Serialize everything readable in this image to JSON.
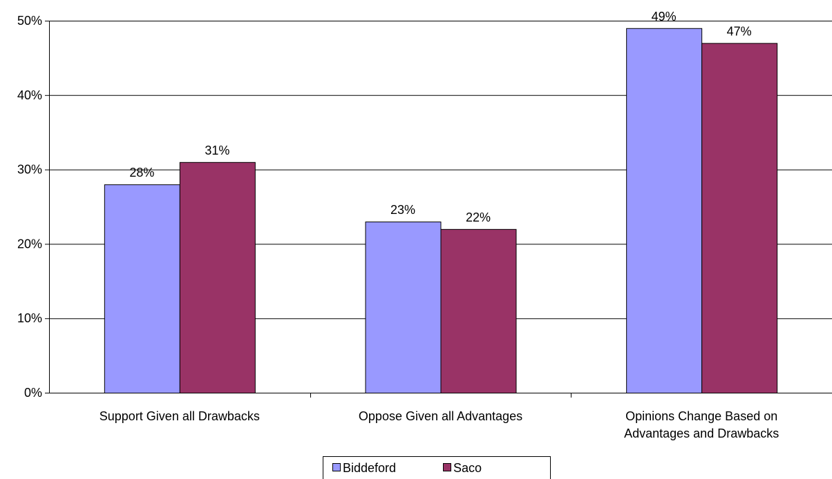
{
  "chart_data": {
    "type": "bar",
    "title": "",
    "xlabel": "",
    "ylabel": "",
    "categories": [
      [
        "Support Given all Drawbacks"
      ],
      [
        "Oppose Given all Advantages"
      ],
      [
        "Opinions Change Based on",
        "Advantages and Drawbacks"
      ]
    ],
    "series": [
      {
        "name": "Biddeford",
        "values": [
          28,
          23,
          49
        ],
        "color": "#9999ff"
      },
      {
        "name": "Saco",
        "values": [
          31,
          22,
          47
        ],
        "color": "#993366"
      }
    ],
    "data_labels": [
      [
        "28%",
        "23%",
        "49%"
      ],
      [
        "31%",
        "22%",
        "47%"
      ]
    ],
    "ylim": [
      0,
      50
    ],
    "yticks": [
      0,
      10,
      20,
      30,
      40,
      50
    ],
    "ytick_labels": [
      "0%",
      "10%",
      "20%",
      "30%",
      "40%",
      "50%"
    ],
    "grid": true,
    "legend_position": "bottom"
  }
}
